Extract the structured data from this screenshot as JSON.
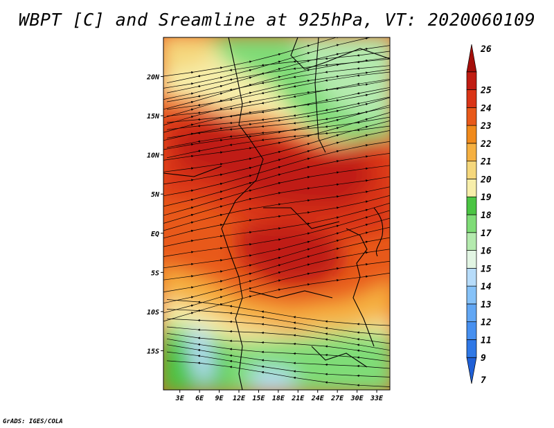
{
  "title": "WBPT [C] and Sreamline at 925hPa, VT: 2020060109",
  "credit": "GrADS: IGES/COLA",
  "map": {
    "lon_labels": [
      "3E",
      "6E",
      "9E",
      "12E",
      "15E",
      "18E",
      "21E",
      "24E",
      "27E",
      "30E",
      "33E"
    ],
    "lon_values": [
      3,
      6,
      9,
      12,
      15,
      18,
      21,
      24,
      27,
      30,
      33
    ],
    "lat_labels": [
      "20N",
      "15N",
      "10N",
      "5N",
      "EQ",
      "5S",
      "10S",
      "15S"
    ],
    "lat_values": [
      20,
      15,
      10,
      5,
      0,
      -5,
      -10,
      -15
    ],
    "lon_range": [
      0.5,
      35
    ],
    "lat_range": [
      -20,
      25
    ]
  },
  "colorbar": {
    "labels": [
      "7",
      "9",
      "11",
      "12",
      "13",
      "14",
      "15",
      "16",
      "17",
      "18",
      "19",
      "20",
      "21",
      "22",
      "23",
      "24",
      "25",
      "26"
    ],
    "colors": [
      "#1f5fd6",
      "#2f78e6",
      "#4790f0",
      "#62a7f4",
      "#86c2f8",
      "#b7dcfa",
      "#e2f5e3",
      "#b4eaae",
      "#7fdc77",
      "#4bc543",
      "#f7eeaa",
      "#f5d77c",
      "#f5b041",
      "#f08a1c",
      "#e8591a",
      "#d93417",
      "#c01c12",
      "#a40e0a"
    ]
  },
  "legend_colors": {
    "very_warm": "#c01c12",
    "warm": "#e8591a",
    "mild": "#f5b041",
    "cool": "#f7eeaa",
    "green": "#4bc543",
    "light_green": "#7fdc77",
    "pale_blue": "#b7dcfa"
  }
}
